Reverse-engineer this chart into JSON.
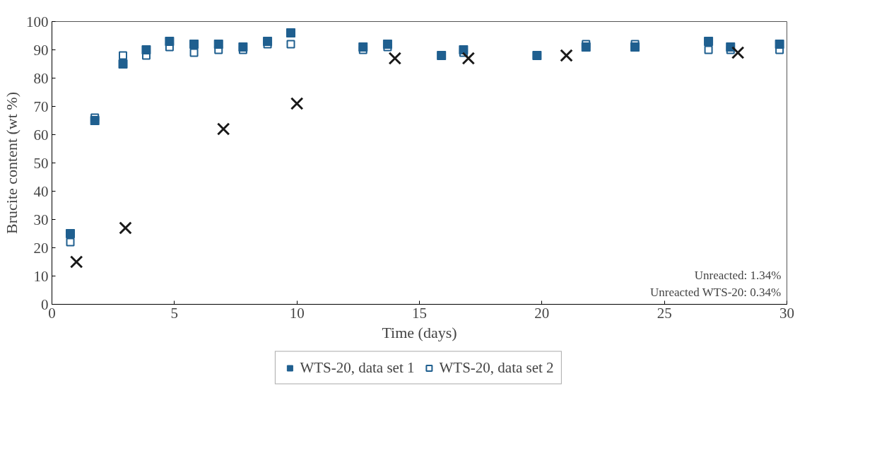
{
  "chart_data": {
    "type": "scatter",
    "xlabel": "Time (days)",
    "ylabel": "Brucite content (wt %)",
    "xlim": [
      0,
      30
    ],
    "xticks": [
      0,
      5,
      10,
      15,
      20,
      25,
      30
    ],
    "ylim": [
      0,
      100
    ],
    "yticks": [
      0,
      10,
      20,
      30,
      40,
      50,
      60,
      70,
      80,
      90,
      100
    ],
    "grid": false,
    "legend": "bottom",
    "marker": "square",
    "series": [
      {
        "name": "WTS-20, data set 1",
        "color": "#1f5f8f",
        "x": [
          0.75,
          1.75,
          2.9,
          3.85,
          4.8,
          5.8,
          6.8,
          7.8,
          8.8,
          9.75,
          12.7,
          13.7,
          15.9,
          16.8,
          19.8,
          21.8,
          23.8,
          26.8,
          27.7,
          29.7
        ],
        "values": [
          25,
          65,
          85,
          90,
          93,
          92,
          92,
          91,
          93,
          96,
          91,
          92,
          88,
          90,
          88,
          91,
          91,
          93,
          91,
          92
        ]
      },
      {
        "name": "WTS-20, data set 2",
        "color": "#1f5f8f",
        "marker": "square_open",
        "x": [
          0.75,
          1.75,
          2.9,
          3.85,
          4.8,
          5.8,
          6.8,
          7.8,
          8.8,
          9.75,
          12.7,
          13.7,
          15.9,
          16.8,
          19.8,
          21.8,
          23.8,
          26.8,
          27.7,
          29.7
        ],
        "values": [
          22,
          66,
          88,
          88,
          91,
          89,
          90,
          90,
          92,
          92,
          90,
          91,
          88,
          89,
          88,
          92,
          92,
          90,
          90,
          90
        ]
      },
      {
        "color": "#1a1a1a",
        "marker": "cross",
        "x": [
          1,
          3,
          7,
          10,
          14,
          17,
          21,
          28
        ],
        "values": [
          15,
          27,
          62,
          71,
          87,
          87,
          88,
          89
        ]
      }
    ],
    "annotations": [
      "Unreacted: 1.34%",
      "Unreacted WTS-20: 0.34%"
    ]
  }
}
